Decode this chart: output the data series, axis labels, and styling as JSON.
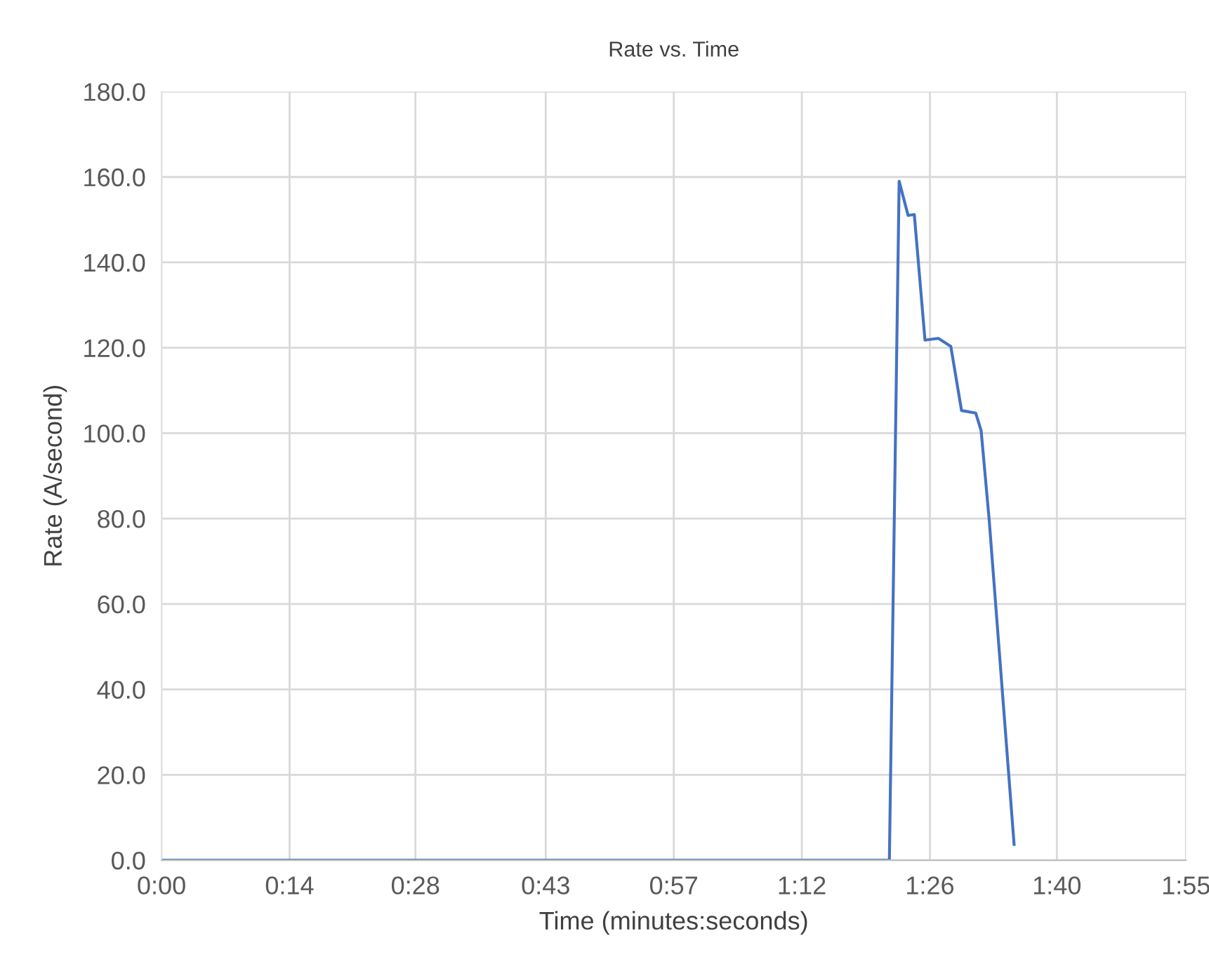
{
  "chart_data": {
    "type": "line",
    "title": "Rate vs. Time",
    "xlabel": "Time (minutes:seconds)",
    "ylabel": "Rate (A/second)",
    "series": [
      {
        "color": "#4472c4",
        "x": [
          0,
          79.8,
          81.7,
          82.8,
          83.8,
          84.5,
          85.7,
          87.2,
          88.6,
          89.8,
          91.4,
          92.0,
          92.9,
          95.7
        ],
        "values": [
          0.0,
          0.0,
          0.0,
          159.0,
          151.0,
          151.2,
          121.8,
          122.2,
          120.3,
          105.3,
          104.7,
          100.6,
          79.8,
          3.7
        ]
      }
    ],
    "xlim": [
      0,
      115
    ],
    "xticks": [
      {
        "value": 0,
        "label": "0:00"
      },
      {
        "value": 14.375,
        "label": "0:14"
      },
      {
        "value": 28.5,
        "label": "0:28"
      },
      {
        "value": 43.125,
        "label": "0:43"
      },
      {
        "value": 57.5,
        "label": "0:57"
      },
      {
        "value": 71.875,
        "label": "1:12"
      },
      {
        "value": 86.25,
        "label": "1:26"
      },
      {
        "value": 100.5,
        "label": "1:40"
      },
      {
        "value": 115,
        "label": "1:55"
      }
    ],
    "ylim": [
      0,
      180
    ],
    "yticks": [
      {
        "value": 0,
        "label": "0.0"
      },
      {
        "value": 20,
        "label": "20.0"
      },
      {
        "value": 40,
        "label": "40.0"
      },
      {
        "value": 60,
        "label": "60.0"
      },
      {
        "value": 80,
        "label": "80.0"
      },
      {
        "value": 100,
        "label": "100.0"
      },
      {
        "value": 120,
        "label": "120.0"
      },
      {
        "value": 140,
        "label": "140.0"
      },
      {
        "value": 160,
        "label": "160.0"
      },
      {
        "value": 180,
        "label": "180.0"
      }
    ],
    "grid": true,
    "marker": "none",
    "line_style": "solid"
  }
}
